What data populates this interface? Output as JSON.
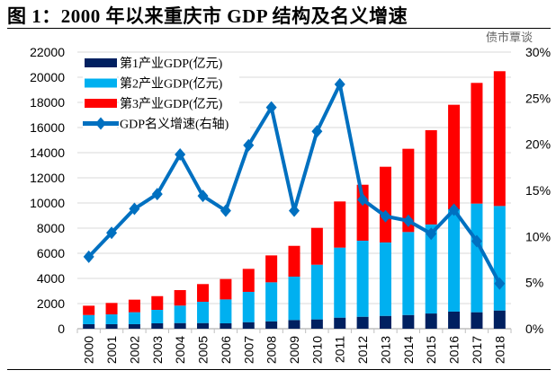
{
  "title": "图 1：2000 年以来重庆市 GDP 结构及名义增速",
  "watermark": "债市覃谈",
  "chart_data": {
    "type": "bar",
    "stacked": true,
    "categories": [
      "2000",
      "2001",
      "2002",
      "2003",
      "2004",
      "2005",
      "2006",
      "2007",
      "2008",
      "2009",
      "2010",
      "2011",
      "2012",
      "2013",
      "2014",
      "2015",
      "2016",
      "2017",
      "2018"
    ],
    "series": [
      {
        "name": "第1产业GDP(亿元)",
        "type": "bar",
        "axis": "left",
        "color": "#002060",
        "values": [
          360,
          360,
          360,
          430,
          450,
          450,
          430,
          520,
          590,
          690,
          740,
          880,
          950,
          1020,
          1090,
          1210,
          1360,
          1310,
          1450
        ]
      },
      {
        "name": "第2产业GDP(亿元)",
        "type": "bar",
        "axis": "left",
        "color": "#00B0F0",
        "values": [
          730,
          780,
          950,
          1070,
          1390,
          1690,
          1900,
          2410,
          3100,
          3450,
          4350,
          5570,
          6050,
          5840,
          6600,
          7080,
          8140,
          8640,
          8310
        ]
      },
      {
        "name": "第3产业GDP(亿元)",
        "type": "bar",
        "axis": "left",
        "color": "#FF0000",
        "values": [
          740,
          910,
          1000,
          1090,
          1230,
          1410,
          1620,
          1830,
          2140,
          2450,
          2930,
          3670,
          4450,
          6020,
          6620,
          7500,
          8310,
          9600,
          10720
        ]
      },
      {
        "name": "GDP名义增速(右轴)",
        "type": "line",
        "axis": "right",
        "color": "#0070C0",
        "marker": "diamond",
        "values": [
          7.8,
          10.4,
          13.0,
          14.6,
          18.9,
          14.4,
          12.8,
          19.9,
          24.0,
          12.8,
          21.4,
          26.5,
          14.0,
          12.2,
          11.7,
          10.3,
          12.9,
          9.5,
          4.9
        ]
      }
    ],
    "ylim": [
      0,
      22000
    ],
    "yticks": [
      "0",
      "2000",
      "4000",
      "6000",
      "8000",
      "10000",
      "12000",
      "14000",
      "16000",
      "18000",
      "20000",
      "22000"
    ],
    "y2lim": [
      0,
      30
    ],
    "y2ticks": [
      "0%",
      "5%",
      "10%",
      "15%",
      "20%",
      "25%",
      "30%"
    ],
    "grid": true,
    "legend": "top-left"
  }
}
